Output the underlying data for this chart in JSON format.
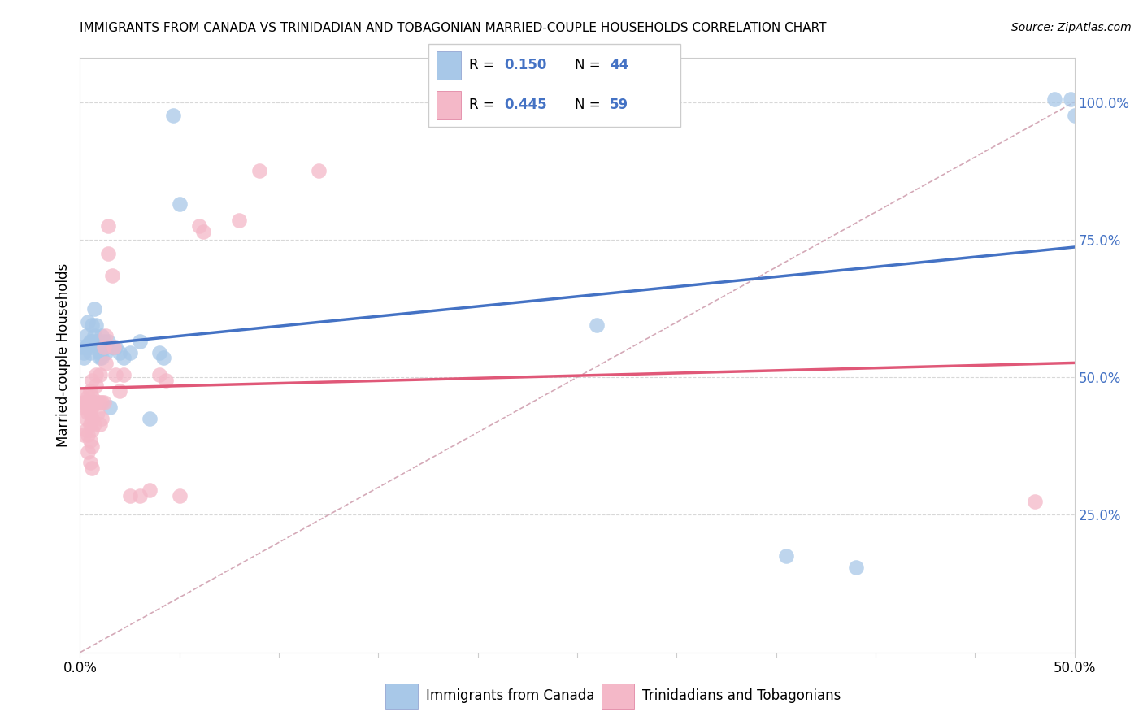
{
  "title": "IMMIGRANTS FROM CANADA VS TRINIDADIAN AND TOBAGONIAN MARRIED-COUPLE HOUSEHOLDS CORRELATION CHART",
  "source": "Source: ZipAtlas.com",
  "ylabel": "Married-couple Households",
  "legend_blue_r": "0.150",
  "legend_blue_n": "44",
  "legend_pink_r": "0.445",
  "legend_pink_n": "59",
  "blue_label": "Immigrants from Canada",
  "pink_label": "Trinidadians and Tobagonians",
  "blue_color": "#a8c8e8",
  "pink_color": "#f4b8c8",
  "blue_line_color": "#4472c4",
  "pink_line_color": "#e05878",
  "diag_line_color": "#d0a0b0",
  "grid_color": "#d8d8d8",
  "xlim": [
    0.0,
    0.5
  ],
  "ylim": [
    0.0,
    1.08
  ],
  "blue_points": [
    [
      0.001,
      0.555
    ],
    [
      0.002,
      0.545
    ],
    [
      0.002,
      0.535
    ],
    [
      0.003,
      0.575
    ],
    [
      0.003,
      0.555
    ],
    [
      0.004,
      0.6
    ],
    [
      0.004,
      0.56
    ],
    [
      0.005,
      0.565
    ],
    [
      0.005,
      0.545
    ],
    [
      0.006,
      0.595
    ],
    [
      0.006,
      0.565
    ],
    [
      0.006,
      0.555
    ],
    [
      0.007,
      0.625
    ],
    [
      0.007,
      0.575
    ],
    [
      0.008,
      0.595
    ],
    [
      0.008,
      0.565
    ],
    [
      0.009,
      0.565
    ],
    [
      0.009,
      0.555
    ],
    [
      0.01,
      0.545
    ],
    [
      0.01,
      0.535
    ],
    [
      0.011,
      0.575
    ],
    [
      0.011,
      0.535
    ],
    [
      0.012,
      0.565
    ],
    [
      0.013,
      0.555
    ],
    [
      0.013,
      0.545
    ],
    [
      0.014,
      0.565
    ],
    [
      0.015,
      0.445
    ],
    [
      0.016,
      0.555
    ],
    [
      0.018,
      0.555
    ],
    [
      0.02,
      0.545
    ],
    [
      0.022,
      0.535
    ],
    [
      0.025,
      0.545
    ],
    [
      0.03,
      0.565
    ],
    [
      0.035,
      0.425
    ],
    [
      0.04,
      0.545
    ],
    [
      0.042,
      0.535
    ],
    [
      0.047,
      0.975
    ],
    [
      0.05,
      0.815
    ],
    [
      0.26,
      0.595
    ],
    [
      0.355,
      0.175
    ],
    [
      0.39,
      0.155
    ],
    [
      0.49,
      1.005
    ],
    [
      0.498,
      1.005
    ],
    [
      0.5,
      0.975
    ]
  ],
  "pink_points": [
    [
      0.001,
      0.465
    ],
    [
      0.002,
      0.455
    ],
    [
      0.002,
      0.445
    ],
    [
      0.002,
      0.395
    ],
    [
      0.003,
      0.455
    ],
    [
      0.003,
      0.445
    ],
    [
      0.003,
      0.425
    ],
    [
      0.003,
      0.405
    ],
    [
      0.004,
      0.465
    ],
    [
      0.004,
      0.435
    ],
    [
      0.004,
      0.395
    ],
    [
      0.004,
      0.365
    ],
    [
      0.005,
      0.475
    ],
    [
      0.005,
      0.455
    ],
    [
      0.005,
      0.435
    ],
    [
      0.005,
      0.415
    ],
    [
      0.005,
      0.385
    ],
    [
      0.005,
      0.345
    ],
    [
      0.006,
      0.495
    ],
    [
      0.006,
      0.465
    ],
    [
      0.006,
      0.445
    ],
    [
      0.006,
      0.425
    ],
    [
      0.006,
      0.405
    ],
    [
      0.006,
      0.375
    ],
    [
      0.006,
      0.335
    ],
    [
      0.007,
      0.455
    ],
    [
      0.007,
      0.415
    ],
    [
      0.008,
      0.505
    ],
    [
      0.008,
      0.485
    ],
    [
      0.009,
      0.455
    ],
    [
      0.009,
      0.435
    ],
    [
      0.01,
      0.505
    ],
    [
      0.01,
      0.455
    ],
    [
      0.01,
      0.415
    ],
    [
      0.011,
      0.455
    ],
    [
      0.011,
      0.425
    ],
    [
      0.012,
      0.555
    ],
    [
      0.012,
      0.455
    ],
    [
      0.013,
      0.575
    ],
    [
      0.013,
      0.525
    ],
    [
      0.014,
      0.775
    ],
    [
      0.014,
      0.725
    ],
    [
      0.016,
      0.685
    ],
    [
      0.017,
      0.555
    ],
    [
      0.018,
      0.505
    ],
    [
      0.02,
      0.475
    ],
    [
      0.022,
      0.505
    ],
    [
      0.025,
      0.285
    ],
    [
      0.03,
      0.285
    ],
    [
      0.035,
      0.295
    ],
    [
      0.04,
      0.505
    ],
    [
      0.043,
      0.495
    ],
    [
      0.05,
      0.285
    ],
    [
      0.06,
      0.775
    ],
    [
      0.062,
      0.765
    ],
    [
      0.08,
      0.785
    ],
    [
      0.09,
      0.875
    ],
    [
      0.12,
      0.875
    ],
    [
      0.48,
      0.275
    ]
  ]
}
